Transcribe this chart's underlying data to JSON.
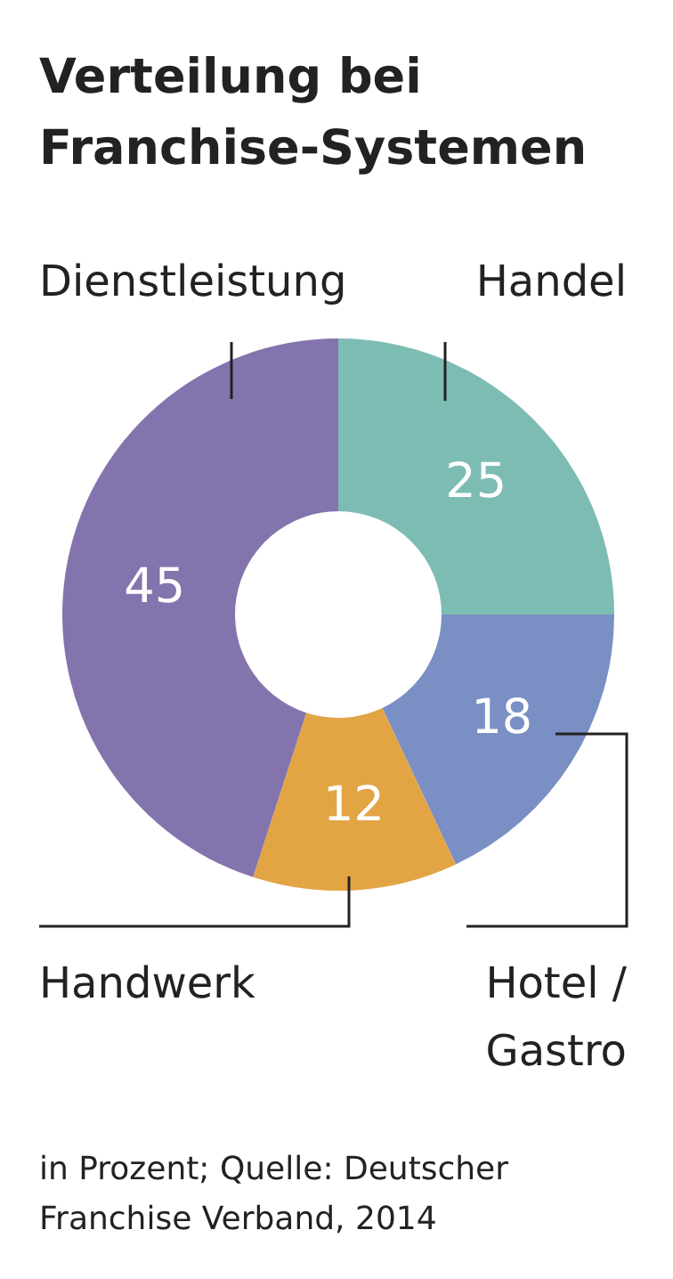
{
  "chart_data": {
    "type": "donut",
    "title": "Verteilung bei\nFranchise-Systemen",
    "categories": [
      "Handel",
      "Hotel /\nGastro",
      "Handwerk",
      "Dienstleistung"
    ],
    "values": [
      25,
      18,
      12,
      45
    ],
    "colors": [
      "#7dbcb3",
      "#7a8fc4",
      "#e3a444",
      "#8474ad"
    ],
    "data_labels": true,
    "legend": false,
    "annotations": [
      "in Prozent; Quelle: Deutscher\nFranchise Verband, 2014"
    ]
  }
}
